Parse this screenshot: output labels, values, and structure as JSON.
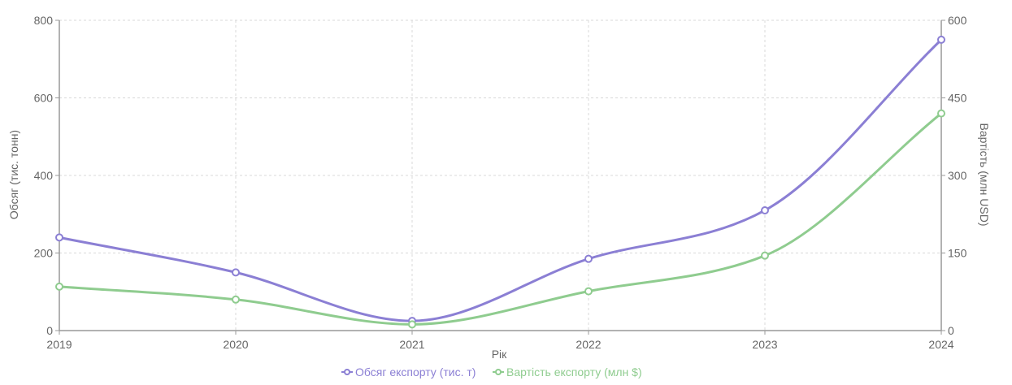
{
  "chart_data": {
    "type": "line",
    "x": [
      "2019",
      "2020",
      "2021",
      "2022",
      "2023",
      "2024"
    ],
    "xlabel": "Рік",
    "y_left": {
      "label": "Обсяг (тис. тонн)",
      "ticks": [
        "0",
        "200",
        "400",
        "600",
        "800"
      ],
      "range": [
        0,
        800
      ]
    },
    "y_right": {
      "label": "Вартість (млн USD)",
      "ticks": [
        "0",
        "150",
        "300",
        "450",
        "600"
      ],
      "range": [
        0,
        600
      ]
    },
    "series": [
      {
        "name": "Обсяг експорту (тис. т)",
        "axis": "left",
        "color": "#8b7fd4",
        "values": [
          240,
          150,
          25,
          185,
          310,
          750
        ]
      },
      {
        "name": "Вартість експорту (млн $)",
        "axis": "right",
        "color": "#8fcc8f",
        "values": [
          85,
          60,
          12,
          76,
          145,
          420
        ]
      }
    ],
    "grid": true,
    "legend": "bottom-center"
  }
}
